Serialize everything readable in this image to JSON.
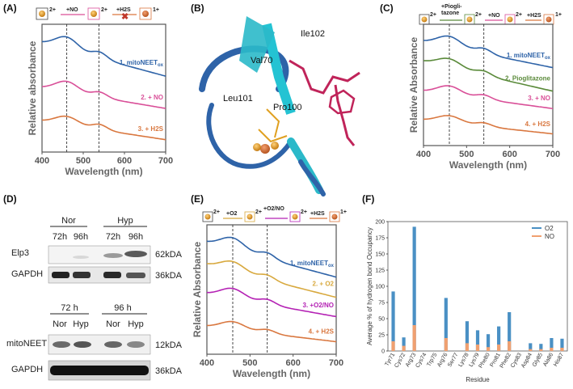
{
  "panels": {
    "A": {
      "label": "(A)"
    },
    "B": {
      "label": "(B)",
      "residues": [
        "Val70",
        "Ile102",
        "Leu101",
        "Pro100"
      ]
    },
    "C": {
      "label": "(C)"
    },
    "D": {
      "label": "(D)"
    },
    "E": {
      "label": "(E)"
    },
    "F": {
      "label": "(F)"
    }
  },
  "schemes": {
    "A": [
      "2+",
      "+NO",
      "2+",
      "+H2S",
      "1+"
    ],
    "C": [
      "2+",
      "+Piogli-",
      "tazone",
      "2+",
      "+NO",
      "2+",
      "+H2S",
      "1+"
    ],
    "E": [
      "2+",
      "+O2",
      "2+",
      "+O2/NO",
      "2+",
      "+H2S",
      "1+"
    ]
  },
  "colors": {
    "blue": "#2e63a8",
    "pink": "#d94f98",
    "orange": "#d9773f",
    "green": "#5a8a3a",
    "gold": "#d8a93e",
    "magenta": "#b421b4",
    "o2": "#4a90c4",
    "no": "#f0a070"
  },
  "western": {
    "top": {
      "groups": [
        "Nor",
        "Hyp"
      ],
      "times": [
        "72h",
        "96h",
        "72h",
        "96h"
      ],
      "rows": [
        {
          "label": "Elp3",
          "kda": "62kDA"
        },
        {
          "label": "GAPDH",
          "kda": "36kDA"
        }
      ]
    },
    "bottom": {
      "groups": [
        "72 h",
        "96 h"
      ],
      "conds": [
        "Nor",
        "Hyp",
        "Nor",
        "Hyp"
      ],
      "rows": [
        {
          "label": "mitoNEET",
          "kda": "12kDA"
        },
        {
          "label": "GAPDH",
          "kda": "36kDA"
        }
      ]
    }
  },
  "chart_data": [
    {
      "id": "A",
      "type": "line",
      "xlabel": "Wavelength (nm)",
      "ylabel": "Relative absorbance",
      "xlim": [
        400,
        700
      ],
      "xticks": [
        400,
        500,
        600,
        700
      ],
      "vlines": [
        460,
        538
      ],
      "series": [
        {
          "name": "1. mitoNEETox",
          "color": "#2e63a8",
          "offset": 0.95,
          "pk": 0.12,
          "sh": 0.06,
          "decay": 0.32
        },
        {
          "name": "2. + NO",
          "color": "#d94f98",
          "offset": 0.52,
          "pk": 0.1,
          "sh": 0.05,
          "decay": 0.2
        },
        {
          "name": "3. + H2S",
          "color": "#d9773f",
          "offset": 0.2,
          "pk": 0.08,
          "sh": 0.05,
          "decay": 0.18
        }
      ]
    },
    {
      "id": "C",
      "type": "line",
      "xlabel": "Wavelength (nm)",
      "ylabel": "Relative Absorbance",
      "xlim": [
        400,
        700
      ],
      "xticks": [
        400,
        500,
        600,
        700
      ],
      "vlines": [
        460,
        540
      ],
      "series": [
        {
          "name": "1. mitoNEETox",
          "color": "#2e63a8",
          "offset": 1.05,
          "pk": 0.12,
          "sh": 0.06,
          "decay": 0.3
        },
        {
          "name": "2. Pioglitazone",
          "color": "#5a8a3a",
          "offset": 0.82,
          "pk": 0.1,
          "sh": 0.05,
          "decay": 0.34
        },
        {
          "name": "3. + NO",
          "color": "#d94f98",
          "offset": 0.48,
          "pk": 0.1,
          "sh": 0.05,
          "decay": 0.2
        },
        {
          "name": "4. + H2S",
          "color": "#d9773f",
          "offset": 0.15,
          "pk": 0.08,
          "sh": 0.04,
          "decay": 0.16
        }
      ]
    },
    {
      "id": "E",
      "type": "line",
      "xlabel": "Wavelength (nm)",
      "ylabel": "Relative Absorbance",
      "xlim": [
        400,
        700
      ],
      "xticks": [
        400,
        500,
        600,
        700
      ],
      "vlines": [
        460,
        540
      ],
      "series": [
        {
          "name": "1. mitoNEETox",
          "color": "#2e63a8",
          "offset": 1.05,
          "pk": 0.12,
          "sh": 0.06,
          "decay": 0.36
        },
        {
          "name": "2. + O2",
          "color": "#d8a93e",
          "offset": 0.82,
          "pk": 0.1,
          "sh": 0.05,
          "decay": 0.34
        },
        {
          "name": "3. +O2/NO",
          "color": "#b421b4",
          "offset": 0.52,
          "pk": 0.1,
          "sh": 0.05,
          "decay": 0.24
        },
        {
          "name": "4. + H2S",
          "color": "#d9773f",
          "offset": 0.18,
          "pk": 0.08,
          "sh": 0.04,
          "decay": 0.16
        }
      ]
    },
    {
      "id": "F",
      "type": "bar",
      "xlabel": "Residue",
      "ylabel": "Average % of hydrogen bond Occupancy",
      "ylim": [
        0,
        200
      ],
      "yticks": [
        0,
        25,
        50,
        75,
        100,
        125,
        150,
        175,
        200
      ],
      "legend": [
        "O2",
        "NO"
      ],
      "categories": [
        "Tyr71",
        "Cys72",
        "Arg73",
        "Cys74",
        "Trp75",
        "Arg76",
        "Ser77",
        "Lys78",
        "Lys79",
        "Phe80",
        "Pro81",
        "Phe82",
        "Cys83",
        "Asp84",
        "Gly85",
        "Ala86",
        "His87"
      ],
      "series": [
        {
          "name": "O2",
          "values": [
            92,
            21,
            192,
            0,
            0,
            82,
            0,
            46,
            32,
            26,
            38,
            60,
            0,
            12,
            11,
            20,
            19
          ]
        },
        {
          "name": "NO",
          "values": [
            15,
            8,
            40,
            0,
            0,
            20,
            0,
            12,
            10,
            6,
            10,
            15,
            0,
            3,
            3,
            5,
            5
          ]
        }
      ]
    }
  ]
}
